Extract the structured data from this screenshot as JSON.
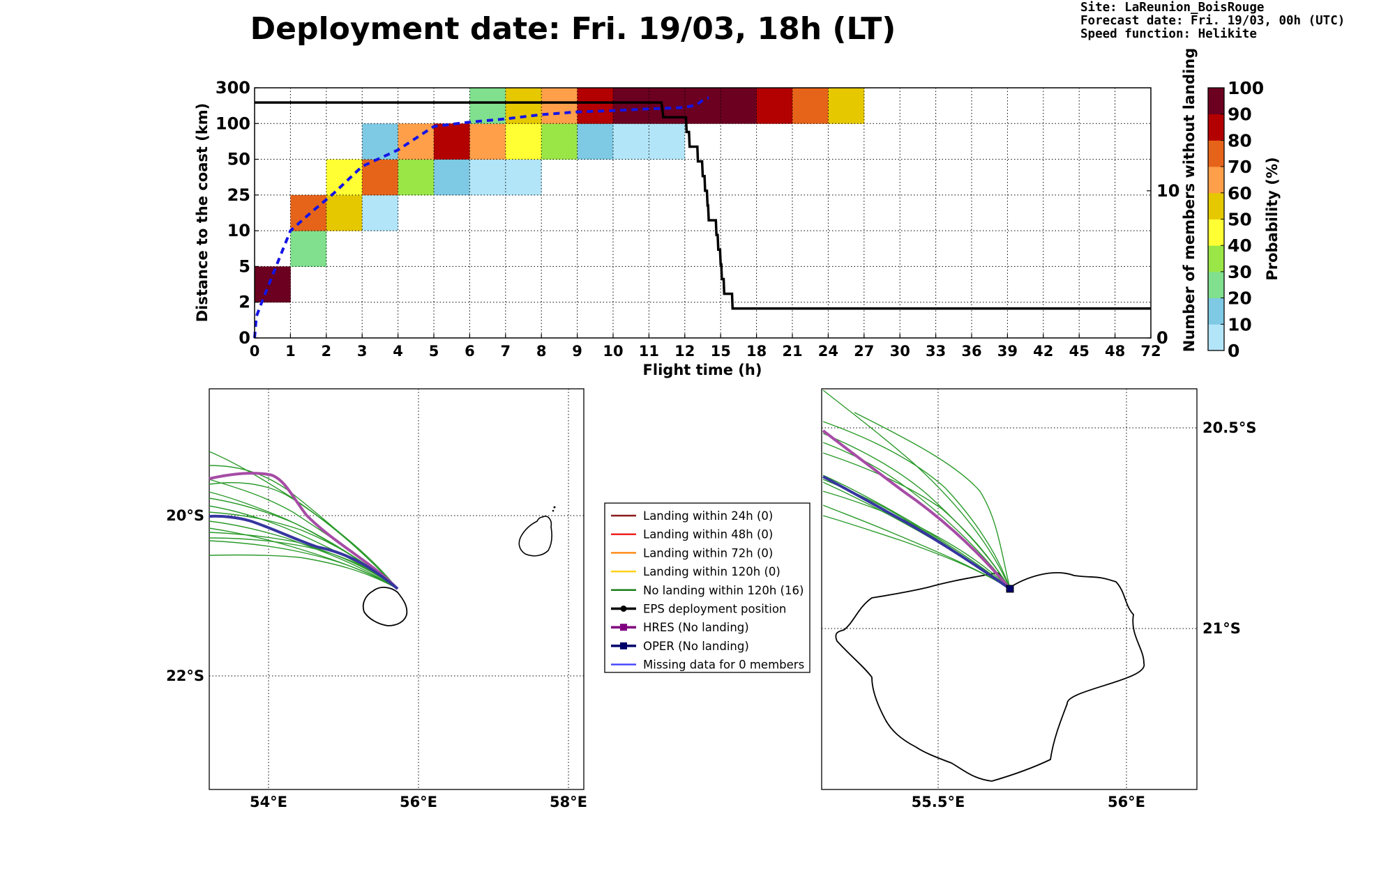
{
  "header": {
    "title": "Deployment date: Fri. 19/03, 18h (LT)",
    "info": [
      "Site: LaReunion_BoisRouge",
      "Forecast date: Fri. 19/03, 00h (UTC)",
      "Speed function: Helikite"
    ]
  },
  "chart_data": [
    {
      "type": "heatmap",
      "xlabel": "Flight time (h)",
      "ylabel": "Distance to the coast (km)",
      "y2label": "Number of members without landing",
      "x_ticks": [
        "0",
        "1",
        "2",
        "3",
        "4",
        "5",
        "6",
        "7",
        "8",
        "9",
        "10",
        "11",
        "12",
        "15",
        "18",
        "21",
        "24",
        "27",
        "30",
        "33",
        "36",
        "39",
        "42",
        "45",
        "48",
        "72"
      ],
      "y_ticks": [
        "0",
        "2",
        "5",
        "10",
        "25",
        "50",
        "100",
        "300"
      ],
      "y2_ticks": [
        "0",
        "10"
      ],
      "y2lim": [
        0,
        17
      ],
      "colorbar": {
        "label": "Probability (%)",
        "ticks": [
          "0",
          "10",
          "20",
          "30",
          "40",
          "50",
          "60",
          "70",
          "80",
          "90",
          "100"
        ],
        "colors": [
          "#b3e5f8",
          "#7ec9e3",
          "#80e08e",
          "#9ae647",
          "#ffff33",
          "#e6c800",
          "#ff9f4a",
          "#e6641a",
          "#b30000",
          "#6b0020"
        ]
      },
      "grid": true,
      "cells": [
        {
          "x": 0,
          "y": 1,
          "p": 95
        },
        {
          "x": 1,
          "y": 2,
          "p": 25
        },
        {
          "x": 1,
          "y": 3,
          "p": 75
        },
        {
          "x": 2,
          "y": 3,
          "p": 55
        },
        {
          "x": 2,
          "y": 4,
          "p": 45
        },
        {
          "x": 3,
          "y": 3,
          "p": 5
        },
        {
          "x": 3,
          "y": 4,
          "p": 75
        },
        {
          "x": 3,
          "y": 5,
          "p": 15
        },
        {
          "x": 4,
          "y": 4,
          "p": 35
        },
        {
          "x": 4,
          "y": 5,
          "p": 65
        },
        {
          "x": 5,
          "y": 4,
          "p": 15
        },
        {
          "x": 5,
          "y": 5,
          "p": 85
        },
        {
          "x": 6,
          "y": 4,
          "p": 5
        },
        {
          "x": 6,
          "y": 5,
          "p": 65
        },
        {
          "x": 6,
          "y": 6,
          "p": 25
        },
        {
          "x": 7,
          "y": 4,
          "p": 5
        },
        {
          "x": 7,
          "y": 5,
          "p": 45
        },
        {
          "x": 7,
          "y": 6,
          "p": 55
        },
        {
          "x": 8,
          "y": 5,
          "p": 35
        },
        {
          "x": 8,
          "y": 6,
          "p": 65
        },
        {
          "x": 9,
          "y": 5,
          "p": 15
        },
        {
          "x": 9,
          "y": 6,
          "p": 85
        },
        {
          "x": 10,
          "y": 5,
          "p": 5
        },
        {
          "x": 10,
          "y": 6,
          "p": 95
        },
        {
          "x": 11,
          "y": 5,
          "p": 5
        },
        {
          "x": 11,
          "y": 6,
          "p": 95
        },
        {
          "x": 12,
          "y": 6,
          "p": 95
        },
        {
          "x": 13,
          "y": 6,
          "p": 95
        },
        {
          "x": 14,
          "y": 6,
          "p": 85
        },
        {
          "x": 15,
          "y": 6,
          "p": 75
        },
        {
          "x": 16,
          "y": 6,
          "p": 55
        }
      ],
      "members_without_landing": [
        [
          0,
          16
        ],
        [
          11.35,
          16
        ],
        [
          11.4,
          15
        ],
        [
          12.1,
          15
        ],
        [
          12.15,
          14
        ],
        [
          12.35,
          14
        ],
        [
          12.4,
          13
        ],
        [
          13.05,
          13
        ],
        [
          13.1,
          12
        ],
        [
          13.45,
          12
        ],
        [
          13.5,
          11
        ],
        [
          13.65,
          11
        ],
        [
          13.7,
          10
        ],
        [
          13.85,
          10
        ],
        [
          13.9,
          9
        ],
        [
          13.95,
          9
        ],
        [
          14.0,
          8
        ],
        [
          14.6,
          8
        ],
        [
          14.65,
          7
        ],
        [
          14.75,
          7
        ],
        [
          14.8,
          6
        ],
        [
          14.95,
          6
        ],
        [
          15.0,
          5
        ],
        [
          15.05,
          5
        ],
        [
          15.1,
          4
        ],
        [
          15.25,
          4
        ],
        [
          15.3,
          3
        ],
        [
          15.95,
          3
        ],
        [
          16.0,
          2
        ],
        [
          27,
          2
        ],
        [
          72,
          2
        ]
      ],
      "mean_distance_km": [
        [
          0,
          0
        ],
        [
          0.05,
          1.2
        ],
        [
          0.2,
          2
        ],
        [
          0.6,
          5
        ],
        [
          1,
          10
        ],
        [
          1.6,
          18
        ],
        [
          2.2,
          26
        ],
        [
          3,
          45
        ],
        [
          4,
          63
        ],
        [
          5,
          96
        ],
        [
          6,
          108
        ],
        [
          7,
          126
        ],
        [
          8,
          150
        ],
        [
          9,
          165
        ],
        [
          10,
          172
        ],
        [
          11,
          182
        ],
        [
          12,
          190
        ],
        [
          13,
          205
        ],
        [
          13.5,
          230
        ],
        [
          14.0,
          245
        ]
      ]
    },
    {
      "type": "map",
      "x_ticks": [
        "54°E",
        "56°E",
        "58°E"
      ],
      "y_ticks": [
        "20°S",
        "22°S"
      ],
      "xlim": [
        53.2,
        58.2
      ],
      "ylim": [
        -23.5,
        -18.5
      ]
    },
    {
      "type": "map",
      "x_ticks": [
        "55.5°E",
        "56°E"
      ],
      "y_ticks": [
        "20.5°S",
        "21°S"
      ],
      "xlim": [
        55.2,
        56.2
      ],
      "ylim": [
        -21.4,
        -20.4
      ]
    }
  ],
  "legend": {
    "items": [
      {
        "label": "Landing within 24h (0)",
        "color": "#8b1a1a",
        "marker": "none"
      },
      {
        "label": "Landing within 48h (0)",
        "color": "#ee2222",
        "marker": "none"
      },
      {
        "label": "Landing within 72h (0)",
        "color": "#ff8c1a",
        "marker": "none"
      },
      {
        "label": "Landing within 120h (0)",
        "color": "#ffd11a",
        "marker": "none"
      },
      {
        "label": "No landing within 120h (16)",
        "color": "#1a7f1a",
        "marker": "none"
      },
      {
        "label": "EPS deployment position",
        "color": "#000000",
        "marker": "circle"
      },
      {
        "label": "HRES (No landing)",
        "color": "#800080",
        "marker": "square"
      },
      {
        "label": "OPER (No landing)",
        "color": "#00006b",
        "marker": "square"
      },
      {
        "label": "Missing data for 0 members",
        "color": "#4a4aff",
        "marker": "none"
      }
    ]
  }
}
